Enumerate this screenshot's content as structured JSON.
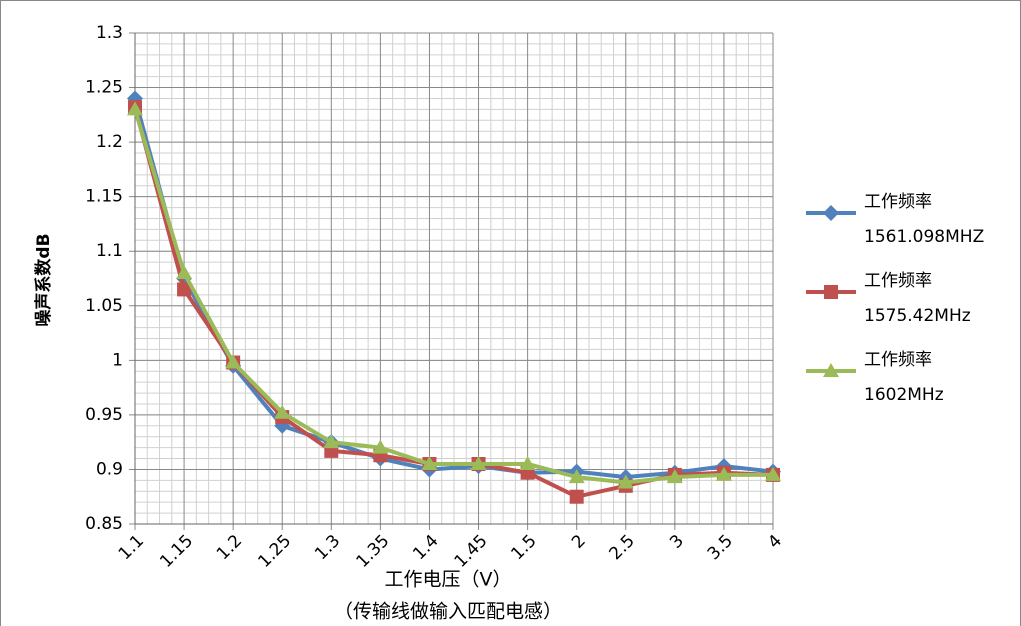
{
  "chart_data": {
    "type": "line",
    "ylabel": "噪声系数dB",
    "xlabel": "工作电压（V）",
    "xlabel_note": "（传输线做输入匹配电感）",
    "categories": [
      "1.1",
      "1.15",
      "1.2",
      "1.25",
      "1.3",
      "1.35",
      "1.4",
      "1.45",
      "1.5",
      "2",
      "2.5",
      "3",
      "3.5",
      "4"
    ],
    "series": [
      {
        "name": "工作频率\n1561.098MHZ",
        "color": "#4f81bd",
        "marker": "diamond",
        "values": [
          1.24,
          1.075,
          0.995,
          0.94,
          0.925,
          0.91,
          0.9,
          0.903,
          0.897,
          0.898,
          0.893,
          0.897,
          0.903,
          0.898
        ]
      },
      {
        "name": "工作频率\n1575.42MHz",
        "color": "#c0504d",
        "marker": "square",
        "values": [
          1.232,
          1.065,
          0.998,
          0.948,
          0.917,
          0.913,
          0.905,
          0.905,
          0.897,
          0.875,
          0.885,
          0.895,
          0.897,
          0.895
        ]
      },
      {
        "name": "工作频率\n1602MHz",
        "color": "#9bbb59",
        "marker": "triangle",
        "values": [
          1.23,
          1.08,
          0.998,
          0.952,
          0.925,
          0.92,
          0.905,
          0.905,
          0.905,
          0.893,
          0.888,
          0.893,
          0.895,
          0.895
        ]
      }
    ],
    "ylim": [
      0.85,
      1.3
    ],
    "yticks": [
      0.85,
      0.9,
      0.95,
      1,
      1.05,
      1.1,
      1.15,
      1.2,
      1.25,
      1.3
    ],
    "grid": true,
    "minor_grid": true,
    "legend": "right"
  }
}
